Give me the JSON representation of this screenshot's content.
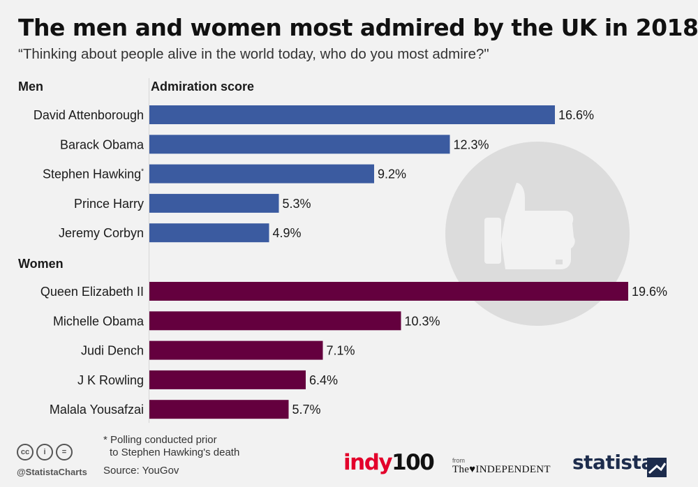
{
  "title": "The men and women most admired by the UK in 2018",
  "subtitle": "“Thinking about people alive in the world today, who do you most admire?\"",
  "headers": {
    "men": "Men",
    "score": "Admiration score",
    "women": "Women"
  },
  "colors": {
    "men": "#3b5ba0",
    "women": "#64003e"
  },
  "chart_data": {
    "type": "bar",
    "orientation": "horizontal",
    "unit": "%",
    "xlim": [
      0,
      19.6
    ],
    "groups": [
      {
        "name": "Men",
        "categories": [
          "David Attenborough",
          "Barack Obama",
          "Stephen Hawking",
          "Prince Harry",
          "Jeremy Corbyn"
        ],
        "values": [
          16.6,
          12.3,
          9.2,
          5.3,
          4.9
        ],
        "labels": [
          "16.6%",
          "12.3%",
          "9.2%",
          "5.3%",
          "4.9%"
        ]
      },
      {
        "name": "Women",
        "categories": [
          "Queen Elizabeth II",
          "Michelle Obama",
          "Judi Dench",
          "J K Rowling",
          "Malala Yousafzai"
        ],
        "values": [
          19.6,
          10.3,
          7.1,
          6.4,
          5.7
        ],
        "labels": [
          "19.6%",
          "10.3%",
          "7.1%",
          "6.4%",
          "5.7%"
        ]
      }
    ],
    "annotations": [
      {
        "category": "Stephen Hawking",
        "marker": "*"
      }
    ]
  },
  "footnote": {
    "line1": "* Polling conducted prior",
    "line2": "to Stephen Hawking's death"
  },
  "source": "Source: YouGov",
  "credits": {
    "handle": "@StatistaCharts",
    "cc": [
      "cc",
      "i",
      "="
    ]
  },
  "logos": {
    "indy_a": "indy",
    "indy_b": "100",
    "from": "from",
    "independent": "The♥INDEPENDENT",
    "statista": "statista"
  },
  "icons": {
    "background": "thumbs-up-icon"
  }
}
